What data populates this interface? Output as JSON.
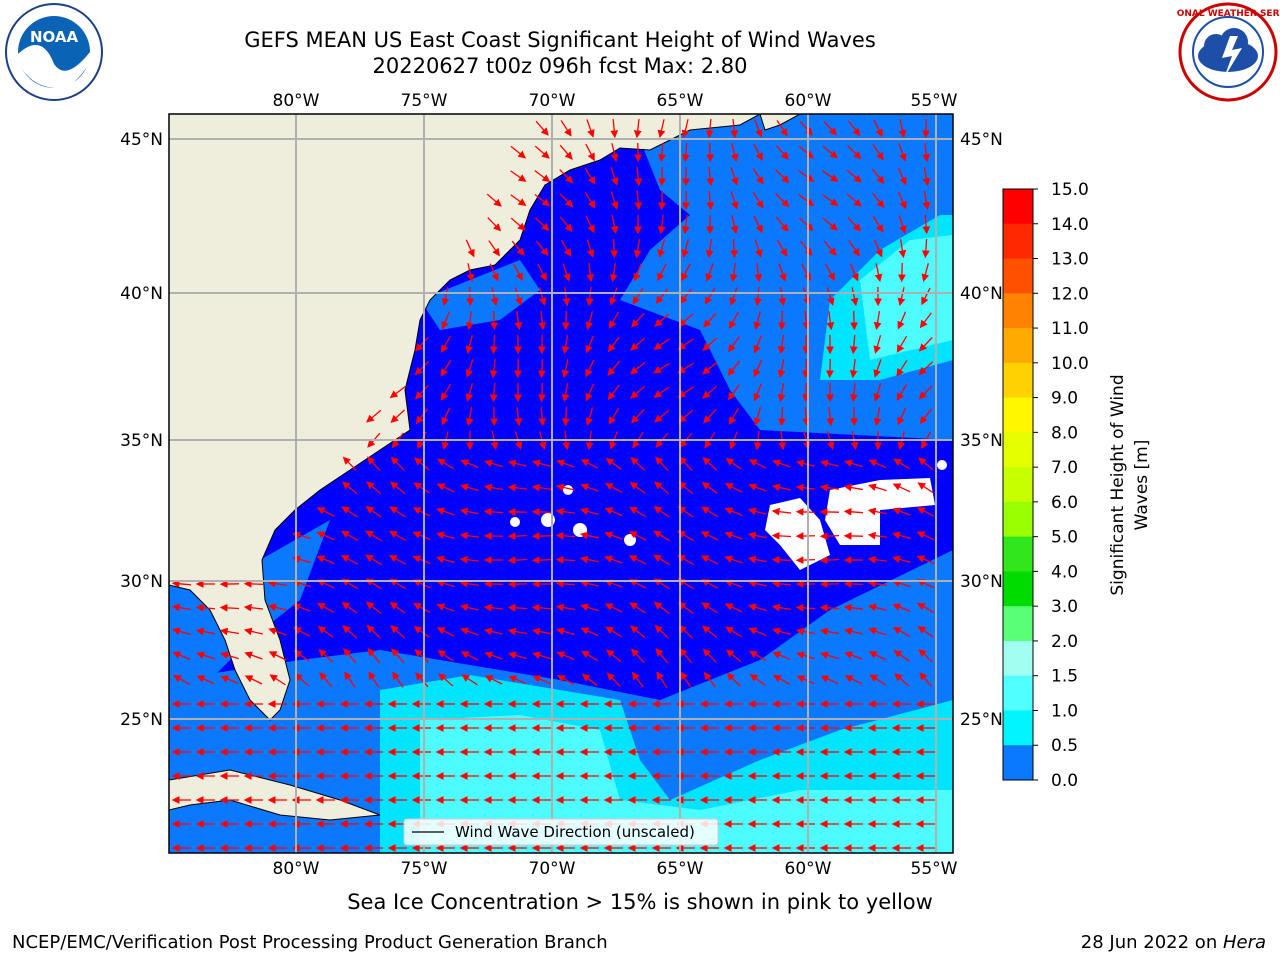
{
  "title": {
    "line1": "GEFS MEAN US East Coast Significant Height of Wind Waves",
    "line2": "20220627 t00z 096h fcst   Max: 2.80"
  },
  "logos": {
    "left_text": "NOAA",
    "right_text": "NATIONAL WEATHER SERVICE"
  },
  "map": {
    "lon_labels": [
      "80°W",
      "75°W",
      "70°W",
      "65°W",
      "60°W",
      "55°W"
    ],
    "lat_labels": [
      "45°N",
      "40°N",
      "35°N",
      "30°N",
      "25°N"
    ],
    "legend": "Wind Wave Direction (unscaled)",
    "colors": {
      "land": "#efeddc",
      "sea_0": "#0000ff",
      "sea_0_5": "#0a78ff",
      "sea_1_0": "#00e5ff",
      "sea_1_5": "#4dfcff",
      "arrow": "#ff0000",
      "grid": "#b0b0b0"
    }
  },
  "colorbar": {
    "label_line1": "Significant Height of Wind",
    "label_line2": "Waves [m]",
    "ticks": [
      "15.0",
      "14.0",
      "13.0",
      "12.0",
      "11.0",
      "10.0",
      "9.0",
      "8.0",
      "7.0",
      "6.0",
      "5.0",
      "4.0",
      "3.0",
      "2.0",
      "1.5",
      "1.0",
      "0.5",
      "0.0"
    ],
    "colors": [
      "#ff0000",
      "#ff2800",
      "#ff5000",
      "#ff8200",
      "#ffaa00",
      "#ffd200",
      "#fff700",
      "#e6ff00",
      "#c8ff00",
      "#96ff00",
      "#32e61e",
      "#00dc00",
      "#5aff78",
      "#a0fff0",
      "#50ffff",
      "#00f5ff",
      "#0a78ff",
      "#0000ff"
    ]
  },
  "note": "Sea Ice Concentration > 15% is shown in pink to yellow",
  "footer": {
    "left": "NCEP/EMC/Verification Post Processing Product Generation Branch",
    "right_prefix": "28 Jun 2022 on ",
    "right_host": "Hera"
  }
}
